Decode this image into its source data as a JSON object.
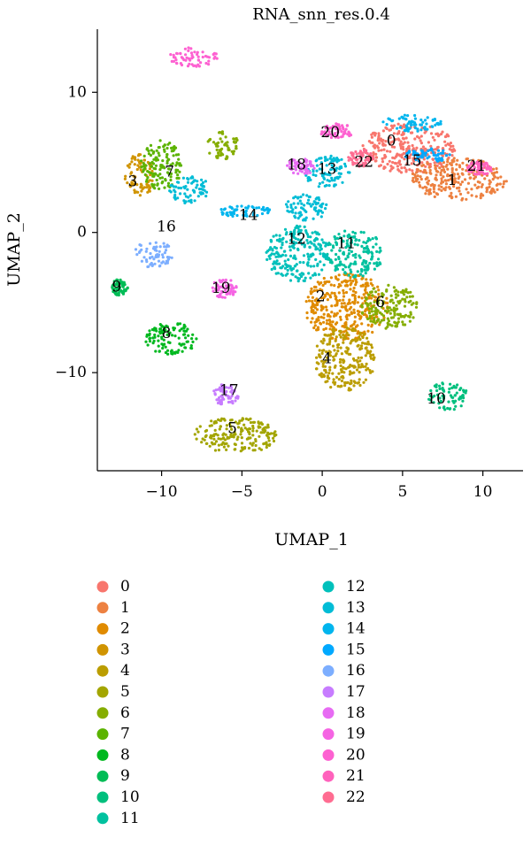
{
  "chart_data": {
    "type": "scatter",
    "title": "RNA_snn_res.0.4",
    "xlabel": "UMAP_1",
    "ylabel": "UMAP_2",
    "xlim": [
      -14,
      12.5
    ],
    "ylim": [
      -17,
      14.5
    ],
    "xticks": [
      -10,
      -5,
      0,
      5,
      10
    ],
    "yticks": [
      10,
      0,
      -10
    ],
    "xtick_labels": [
      "−10",
      "−5",
      "0",
      "5",
      "10"
    ],
    "ytick_labels": [
      "10",
      "0",
      "−10"
    ],
    "grid": false,
    "legend_position": "bottom",
    "clusters": [
      {
        "name": "0",
        "color": "#F8766D",
        "label_at": [
          4.3,
          6.5
        ],
        "blobs": [
          [
            5.5,
            6.0,
            3.0,
            1.8
          ]
        ]
      },
      {
        "name": "1",
        "color": "#ED8141",
        "label_at": [
          8.1,
          3.7
        ],
        "blobs": [
          [
            8.5,
            3.8,
            3.0,
            1.5
          ]
        ]
      },
      {
        "name": "2",
        "color": "#E08B00",
        "label_at": [
          -0.1,
          -4.6
        ],
        "blobs": [
          [
            1.5,
            -5.3,
            2.6,
            2.4
          ]
        ]
      },
      {
        "name": "3",
        "color": "#D09400",
        "label_at": [
          -11.8,
          3.6
        ],
        "blobs": [
          [
            -11.4,
            4.0,
            0.9,
            1.6
          ]
        ]
      },
      {
        "name": "4",
        "color": "#BB9D00",
        "label_at": [
          0.3,
          -9.0
        ],
        "blobs": [
          [
            1.4,
            -9.0,
            1.9,
            2.3
          ]
        ]
      },
      {
        "name": "5",
        "color": "#A3A500",
        "label_at": [
          -5.6,
          -14.0
        ],
        "blobs": [
          [
            -5.4,
            -14.5,
            2.6,
            1.3
          ]
        ]
      },
      {
        "name": "6",
        "color": "#85AD00",
        "label_at": [
          3.6,
          -5.0
        ],
        "blobs": [
          [
            4.2,
            -5.3,
            1.8,
            1.6
          ],
          [
            -6.2,
            6.2,
            1.0,
            1.0
          ]
        ]
      },
      {
        "name": "7",
        "color": "#5BB300",
        "label_at": [
          -9.5,
          4.3
        ],
        "blobs": [
          [
            -10.0,
            4.8,
            1.3,
            1.8
          ]
        ]
      },
      {
        "name": "8",
        "color": "#00B81F",
        "label_at": [
          -9.7,
          -7.2
        ],
        "blobs": [
          [
            -9.4,
            -7.6,
            1.6,
            1.2
          ]
        ]
      },
      {
        "name": "9",
        "color": "#00BC56",
        "label_at": [
          -12.8,
          -3.9
        ],
        "blobs": [
          [
            -12.6,
            -3.9,
            0.5,
            0.6
          ]
        ]
      },
      {
        "name": "10",
        "color": "#00BF7D",
        "label_at": [
          7.1,
          -11.9
        ],
        "blobs": [
          [
            7.8,
            -11.7,
            1.3,
            1.0
          ]
        ]
      },
      {
        "name": "11",
        "color": "#00C19F",
        "label_at": [
          1.5,
          -0.8
        ],
        "blobs": [
          [
            2.0,
            -1.5,
            1.8,
            1.7
          ]
        ]
      },
      {
        "name": "12",
        "color": "#00C0BB",
        "label_at": [
          -1.6,
          -0.5
        ],
        "blobs": [
          [
            -1.5,
            -1.5,
            2.0,
            2.0
          ]
        ]
      },
      {
        "name": "13",
        "color": "#00BCD6",
        "label_at": [
          0.3,
          4.5
        ],
        "blobs": [
          [
            0.3,
            4.3,
            1.4,
            1.2
          ],
          [
            -8.2,
            3.0,
            1.3,
            1.0
          ],
          [
            -1.0,
            1.8,
            1.3,
            1.0
          ]
        ]
      },
      {
        "name": "14",
        "color": "#00B5EE",
        "label_at": [
          -4.6,
          1.2
        ],
        "blobs": [
          [
            -4.8,
            1.5,
            1.7,
            0.4
          ],
          [
            5.5,
            7.8,
            2.0,
            0.6
          ]
        ]
      },
      {
        "name": "15",
        "color": "#00A9FF",
        "label_at": [
          5.6,
          5.1
        ],
        "blobs": [
          [
            6.5,
            5.5,
            1.5,
            0.5
          ]
        ]
      },
      {
        "name": "16",
        "color": "#7CAEFF",
        "label_at": [
          -9.7,
          0.4
        ],
        "blobs": [
          [
            -10.5,
            -1.5,
            1.2,
            1.0
          ]
        ]
      },
      {
        "name": "17",
        "color": "#C77CFF",
        "label_at": [
          -5.8,
          -11.3
        ],
        "blobs": [
          [
            -6.0,
            -11.6,
            0.8,
            0.8
          ]
        ]
      },
      {
        "name": "18",
        "color": "#E76BF3",
        "label_at": [
          -1.6,
          4.8
        ],
        "blobs": [
          [
            -1.3,
            4.7,
            0.9,
            0.6
          ]
        ]
      },
      {
        "name": "19",
        "color": "#F564E3",
        "label_at": [
          -6.3,
          -4.0
        ],
        "blobs": [
          [
            -6.1,
            -4.0,
            0.8,
            0.7
          ]
        ]
      },
      {
        "name": "20",
        "color": "#FD61D1",
        "label_at": [
          0.5,
          7.1
        ],
        "blobs": [
          [
            0.9,
            7.2,
            1.0,
            0.6
          ],
          [
            -8.0,
            12.5,
            1.5,
            0.7
          ]
        ]
      },
      {
        "name": "21",
        "color": "#FF62BC",
        "label_at": [
          9.6,
          4.7
        ],
        "blobs": [
          [
            9.8,
            4.6,
            0.8,
            0.5
          ]
        ]
      },
      {
        "name": "22",
        "color": "#FF6C91",
        "label_at": [
          2.6,
          5.0
        ],
        "blobs": [
          [
            2.4,
            5.3,
            0.8,
            0.6
          ]
        ]
      }
    ]
  }
}
